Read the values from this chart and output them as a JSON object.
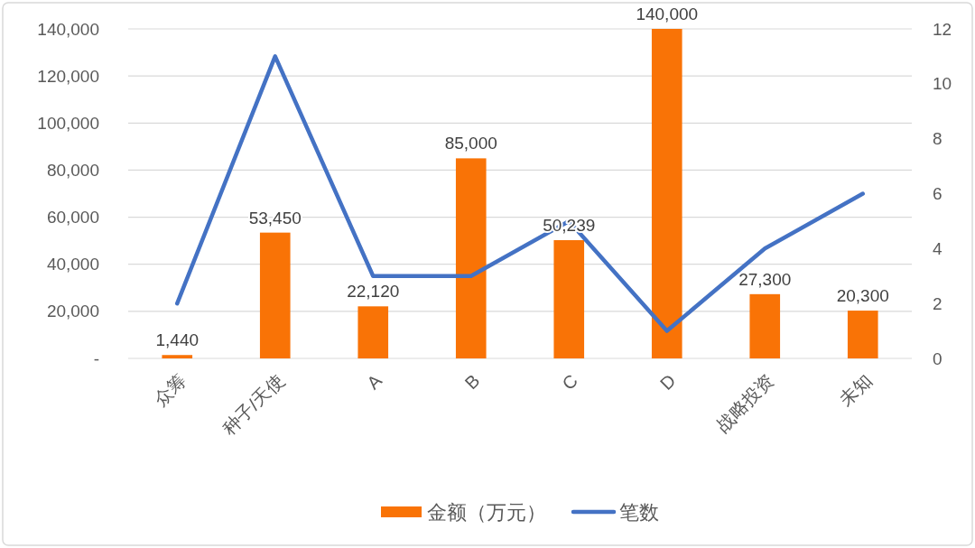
{
  "chart_data": {
    "type": "bar",
    "categories": [
      "众筹",
      "种子/天使",
      "A",
      "B",
      "C",
      "D",
      "战略投资",
      "未知"
    ],
    "series": [
      {
        "name": "金额（万元）",
        "color": "#f97306",
        "values": [
          1440,
          53450,
          22120,
          85000,
          50239,
          140000,
          27300,
          20300
        ],
        "value_labels": [
          "1,440",
          "53,450",
          "22,120",
          "85,000",
          "50,239",
          "140,000",
          "27,300",
          "20,300"
        ]
      },
      {
        "name": "笔数",
        "type": "line",
        "axis": "y2",
        "color": "#4472c4",
        "values": [
          2,
          11,
          3,
          3,
          5,
          1,
          4,
          6
        ]
      }
    ],
    "ylim": [
      0,
      140000
    ],
    "yticks": [
      {
        "value": 0,
        "label": "-"
      },
      {
        "value": 20000,
        "label": "20,000"
      },
      {
        "value": 40000,
        "label": "40,000"
      },
      {
        "value": 60000,
        "label": "60,000"
      },
      {
        "value": 80000,
        "label": "80,000"
      },
      {
        "value": 100000,
        "label": "100,000"
      },
      {
        "value": 120000,
        "label": "120,000"
      },
      {
        "value": 140000,
        "label": "140,000"
      }
    ],
    "y2lim": [
      0,
      12
    ],
    "y2ticks": [
      0,
      2,
      4,
      6,
      8,
      10,
      12
    ],
    "grid": "y",
    "legend": "bottom"
  }
}
